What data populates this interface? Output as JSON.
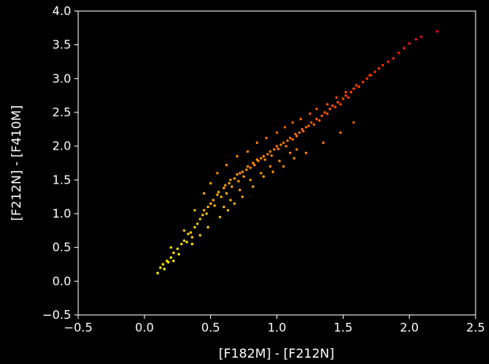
{
  "chart_data": {
    "type": "scatter",
    "title": "",
    "xlabel": "[F182M] - [F212N]",
    "ylabel": "[F212N] - [F410M]",
    "xlim": [
      -0.5,
      2.5
    ],
    "ylim": [
      -0.5,
      4.0
    ],
    "xticks": [
      -0.5,
      0.0,
      0.5,
      1.0,
      1.5,
      2.0,
      2.5
    ],
    "yticks": [
      -0.5,
      0.0,
      0.5,
      1.0,
      1.5,
      2.0,
      2.5,
      3.0,
      3.5,
      4.0
    ],
    "xtick_labels": [
      "−0.5",
      "0.0",
      "0.5",
      "1.0",
      "1.5",
      "2.0",
      "2.5"
    ],
    "ytick_labels": [
      "−0.5",
      "0.0",
      "0.5",
      "1.0",
      "1.5",
      "2.0",
      "2.5",
      "3.0",
      "3.5",
      "4.0"
    ],
    "grid": false,
    "legend": "none",
    "background_color": "#000000",
    "axis_color": "#ffffff",
    "colormap": "autumn_r (yellow at low color, red at high color)",
    "series": [
      {
        "values_x": [
          0.1,
          0.12,
          0.14,
          0.15,
          0.17,
          0.18,
          0.2,
          0.22,
          0.22,
          0.25,
          0.26,
          0.28,
          0.3,
          0.32,
          0.33,
          0.35,
          0.36,
          0.38,
          0.4,
          0.42,
          0.44,
          0.45,
          0.47,
          0.48,
          0.5,
          0.52,
          0.53,
          0.55,
          0.56,
          0.58,
          0.6,
          0.61,
          0.62,
          0.64,
          0.65,
          0.66,
          0.68,
          0.7,
          0.71,
          0.72,
          0.74,
          0.75,
          0.77,
          0.78,
          0.8,
          0.82,
          0.83,
          0.85,
          0.86,
          0.88,
          0.9,
          0.91,
          0.93,
          0.95,
          0.96,
          0.98,
          1.0,
          1.01,
          1.03,
          1.05,
          1.07,
          1.08,
          1.1,
          1.12,
          1.14,
          1.15,
          1.17,
          1.19,
          1.2,
          1.22,
          1.24,
          1.26,
          1.28,
          1.3,
          1.32,
          1.34,
          1.36,
          1.38,
          1.4,
          1.42,
          1.44,
          1.46,
          1.48,
          1.5,
          1.52,
          1.54,
          1.56,
          1.58,
          1.6,
          1.62,
          1.65,
          1.68,
          1.71,
          1.74,
          1.77,
          1.8,
          1.84,
          1.88,
          1.92,
          1.96,
          2.0,
          2.05,
          2.09,
          2.21,
          0.2,
          0.3,
          0.38,
          0.45,
          0.5,
          0.55,
          0.62,
          0.7,
          0.78,
          0.85,
          0.92,
          1.0,
          1.06,
          1.12,
          1.18,
          1.25,
          1.3,
          1.38,
          1.45,
          1.52,
          1.6,
          1.7,
          0.6,
          0.65,
          0.72,
          0.8,
          0.88,
          0.95,
          1.02,
          1.1,
          1.15,
          0.36,
          0.42,
          0.48,
          0.57,
          0.63,
          0.68,
          0.74,
          0.82,
          0.9,
          0.97,
          1.05,
          1.13,
          1.22,
          1.35,
          1.48,
          1.58
        ],
        "values_y": [
          0.12,
          0.2,
          0.25,
          0.18,
          0.3,
          0.28,
          0.35,
          0.42,
          0.3,
          0.48,
          0.4,
          0.55,
          0.6,
          0.58,
          0.7,
          0.72,
          0.65,
          0.8,
          0.85,
          0.92,
          0.98,
          1.05,
          1.0,
          1.1,
          1.15,
          1.2,
          1.12,
          1.28,
          1.32,
          1.25,
          1.38,
          1.42,
          1.3,
          1.45,
          1.5,
          1.4,
          1.52,
          1.58,
          1.48,
          1.6,
          1.62,
          1.55,
          1.65,
          1.7,
          1.68,
          1.75,
          1.72,
          1.8,
          1.78,
          1.82,
          1.85,
          1.8,
          1.88,
          1.92,
          1.86,
          1.95,
          2.0,
          1.96,
          2.02,
          2.05,
          2.0,
          2.08,
          2.12,
          2.1,
          2.18,
          2.15,
          2.2,
          2.25,
          2.22,
          2.28,
          2.3,
          2.35,
          2.32,
          2.4,
          2.38,
          2.45,
          2.5,
          2.48,
          2.55,
          2.6,
          2.58,
          2.65,
          2.62,
          2.7,
          2.75,
          2.72,
          2.8,
          2.85,
          2.9,
          2.88,
          2.95,
          3.0,
          3.05,
          3.1,
          3.15,
          3.2,
          3.25,
          3.3,
          3.38,
          3.45,
          3.52,
          3.58,
          3.62,
          3.7,
          0.5,
          0.75,
          1.05,
          1.3,
          1.45,
          1.6,
          1.72,
          1.85,
          1.92,
          2.05,
          2.12,
          2.2,
          2.28,
          2.35,
          2.4,
          2.48,
          2.55,
          2.62,
          2.72,
          2.8,
          2.9,
          3.05,
          1.1,
          1.2,
          1.35,
          1.5,
          1.6,
          1.7,
          1.78,
          1.9,
          1.95,
          0.55,
          0.68,
          0.8,
          0.95,
          1.05,
          1.15,
          1.25,
          1.4,
          1.55,
          1.62,
          1.7,
          1.82,
          1.9,
          2.05,
          2.2,
          2.35
        ]
      }
    ]
  }
}
